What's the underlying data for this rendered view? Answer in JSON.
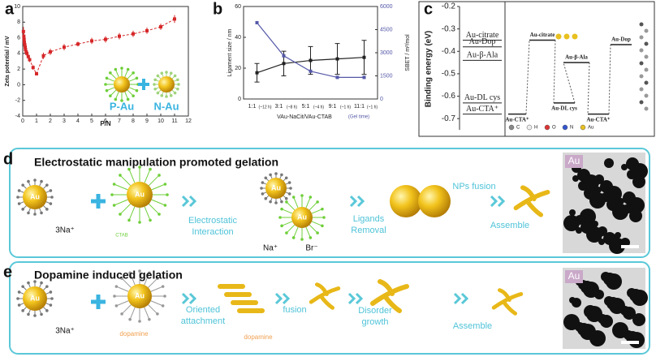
{
  "panel_labels": [
    "a",
    "b",
    "c",
    "d",
    "e"
  ],
  "chart_data": [
    {
      "type": "scatter",
      "xlabel": "P/N",
      "ylabel": "Zeta potential / mV",
      "color": "#d62728",
      "x": [
        0.05,
        0.08,
        0.1,
        0.12,
        0.15,
        0.18,
        0.2,
        0.25,
        0.3,
        0.4,
        0.5,
        0.75,
        1,
        1.5,
        2,
        3,
        4,
        5,
        6,
        7,
        8,
        9,
        10,
        11
      ],
      "values": [
        6.8,
        6.2,
        5.8,
        5.4,
        5.1,
        4.8,
        4.5,
        4.2,
        4.0,
        3.6,
        3.2,
        2.2,
        1.4,
        3.7,
        4.2,
        4.8,
        5.2,
        5.6,
        5.8,
        6.2,
        6.5,
        6.9,
        7.4,
        8.4
      ],
      "errors": [
        0.6,
        0.4,
        0.4,
        0.3,
        0.3,
        0.3,
        0.3,
        0.3,
        0.3,
        0.3,
        0.3,
        0.3,
        0.2,
        0.4,
        0.4,
        0.4,
        0.3,
        0.4,
        0.4,
        0.4,
        0.4,
        0.4,
        0.4,
        0.5
      ],
      "xlim": [
        0,
        12
      ],
      "xticks": [
        0,
        1,
        2,
        3,
        4,
        5,
        6,
        7,
        8,
        9,
        10,
        11,
        12
      ],
      "ylim": [
        -4,
        10
      ],
      "yticks": [
        -4,
        -2,
        0,
        2,
        4,
        6,
        8,
        10
      ],
      "annotations": [
        "P-Au",
        "N-Au"
      ]
    },
    {
      "type": "line",
      "xlabel": "VAu-NaCit/VAu-CTAB",
      "xlabel_note": "(Gel time)",
      "ylabel": "Ligament size / nm",
      "y2label": "SBET / m²/mol",
      "categories": [
        "1:1",
        "3:1",
        "5:1",
        "9:1",
        "11:1"
      ],
      "category_notes": [
        "(~12 h)",
        "(~8 h)",
        "(~4 h)",
        "(~1 h)",
        "(~1 h)"
      ],
      "series": [
        {
          "color": "#222222",
          "values": [
            17,
            23,
            25,
            26,
            27
          ],
          "errors": [
            6,
            8,
            9,
            10,
            11
          ]
        },
        {
          "color": "#5458a8",
          "values": [
            4950,
            2800,
            1800,
            1400,
            1400
          ],
          "axis": "y2"
        }
      ],
      "ylim": [
        0,
        60
      ],
      "yticks": [
        0,
        20,
        40,
        60
      ],
      "y2lim": [
        0,
        6000
      ],
      "y2ticks": [
        0,
        1500,
        3000,
        4500,
        6000
      ]
    },
    {
      "type": "energy",
      "ylabel": "Binding energy (eV)",
      "ylim": [
        -0.75,
        -0.2
      ],
      "yticks": [
        -0.2,
        -0.3,
        -0.4,
        -0.5,
        -0.6,
        -0.7
      ],
      "reference_levels": {
        "labels": [
          "Au-citrate",
          "Au-Dop",
          "Au-β-Ala",
          "Au-DL cys",
          "Au-CTA⁺"
        ],
        "values": [
          -0.35,
          -0.38,
          -0.44,
          -0.63,
          -0.68
        ]
      },
      "pathway": {
        "labels": [
          "Au-CTA⁺",
          "Au-citrate",
          "Au-DL cys",
          "Au-β-Ala",
          "Au-CTA⁺",
          "Au-Dop"
        ],
        "values": [
          -0.68,
          -0.35,
          -0.63,
          -0.45,
          -0.68,
          -0.37
        ]
      },
      "legend": [
        "C",
        "H",
        "O",
        "N",
        "Au"
      ]
    }
  ],
  "schemes": [
    {
      "title": "Electrostatic manipulation promoted gelation",
      "labels": [
        "Au",
        "Au",
        "Au",
        "Au",
        "CTAB",
        "3Na⁺",
        "Electrostatic",
        "Interaction",
        "Na⁺",
        "Br⁻",
        "Ligands",
        "Removal",
        "NPs fusion",
        "Assemble",
        "Au"
      ]
    },
    {
      "title": "Dopamine induced gelation",
      "labels": [
        "Au",
        "Au",
        "dopamine",
        "Oriented",
        "attachment",
        "dopamine",
        "fusion",
        "Disorder",
        "growth",
        "Assemble",
        "3Na⁺",
        "Au"
      ]
    }
  ]
}
